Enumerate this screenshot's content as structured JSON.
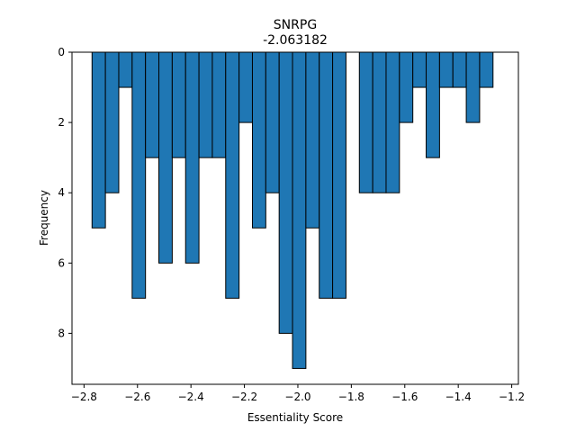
{
  "chart_data": {
    "type": "bar",
    "title": "SNRPG",
    "subtitle": "-2.063182",
    "xlabel": "Essentiality Score",
    "ylabel": "Frequency",
    "bar_color": "#1f77b4",
    "edge_color": "#000000",
    "y_inverted": true,
    "xlim": [
      -2.845,
      -1.175
    ],
    "ylim": [
      0,
      9.45
    ],
    "xticks": [
      -2.8,
      -2.6,
      -2.4,
      -2.2,
      -2.0,
      -1.8,
      -1.6,
      -1.4,
      -1.2
    ],
    "xtick_labels": [
      "−2.8",
      "−2.6",
      "−2.4",
      "−2.2",
      "−2.0",
      "−1.8",
      "−1.6",
      "−1.4",
      "−1.2"
    ],
    "yticks": [
      0,
      2,
      4,
      6,
      8
    ],
    "ytick_labels": [
      "0",
      "2",
      "4",
      "6",
      "8"
    ],
    "bin_width": 0.05,
    "bin_starts": [
      -2.77,
      -2.72,
      -2.67,
      -2.62,
      -2.57,
      -2.52,
      -2.47,
      -2.42,
      -2.37,
      -2.32,
      -2.27,
      -2.22,
      -2.17,
      -2.12,
      -2.07,
      -2.02,
      -1.97,
      -1.92,
      -1.87,
      -1.82,
      -1.77,
      -1.72,
      -1.67,
      -1.62,
      -1.57,
      -1.52,
      -1.47,
      -1.42,
      -1.37,
      -1.32,
      -1.27
    ],
    "values": [
      5,
      4,
      1,
      7,
      3,
      6,
      3,
      6,
      3,
      3,
      7,
      2,
      5,
      4,
      8,
      9,
      5,
      7,
      7,
      0,
      4,
      4,
      4,
      2,
      1,
      3,
      1,
      1,
      2,
      1,
      0
    ]
  }
}
